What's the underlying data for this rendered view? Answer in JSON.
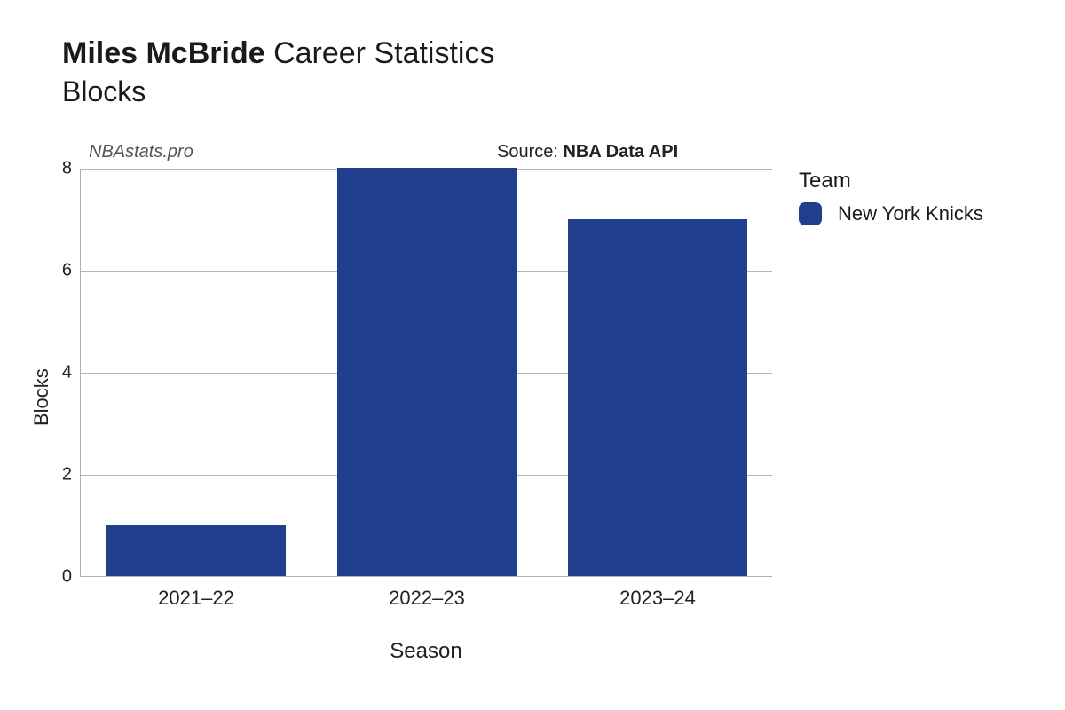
{
  "title": {
    "player_name": "Miles McBride",
    "suffix": "Career Statistics",
    "subtitle": "Blocks",
    "title_fontsize": 34,
    "subtitle_fontsize": 32
  },
  "watermark": {
    "text": "NBAstats.pro",
    "fontsize": 20,
    "font_style": "italic"
  },
  "source": {
    "prefix": "Source: ",
    "name": "NBA Data API",
    "fontsize": 20
  },
  "chart": {
    "type": "bar",
    "categories": [
      "2021–22",
      "2022–23",
      "2023–24"
    ],
    "values": [
      1,
      8,
      7
    ],
    "bar_color": "#1f3f8c",
    "bar_width": 0.78,
    "background_color": "#ffffff",
    "grid_color": "#b5b5b5",
    "axis_color": "#b0b0b0",
    "ylim": [
      0,
      8
    ],
    "yticks": [
      0,
      2,
      4,
      6,
      8
    ],
    "ylabel": "Blocks",
    "xlabel": "Season",
    "tick_fontsize": 20,
    "label_fontsize": 22
  },
  "legend": {
    "title": "Team",
    "items": [
      {
        "label": "New York Knicks",
        "color": "#1f3f8c"
      }
    ],
    "title_fontsize": 24,
    "item_fontsize": 22
  }
}
